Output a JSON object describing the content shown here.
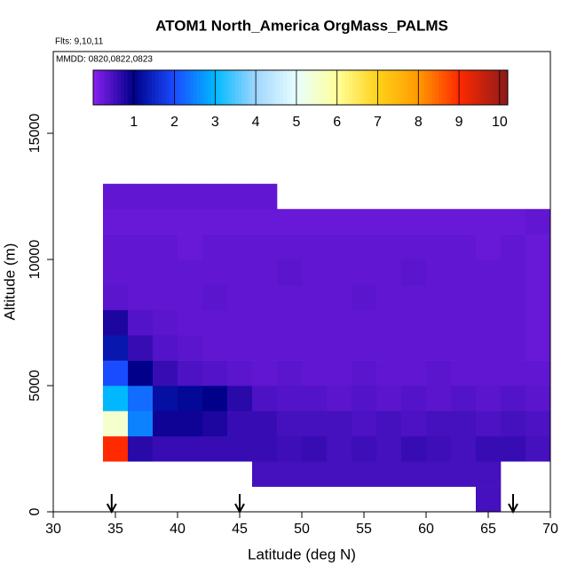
{
  "chart_data": {
    "type": "heatmap",
    "title": "ATOM1 North_America OrgMass_PALMS",
    "annotations": [
      "Flts: 9,10,11",
      "MMDD: 0820,0822,0823"
    ],
    "x_label": "Latitude (deg N)",
    "y_label": "Altitude (m)",
    "xlim": [
      30,
      70
    ],
    "xticks": [
      30,
      35,
      40,
      45,
      50,
      55,
      60,
      65,
      70
    ],
    "ylim": [
      0,
      18240
    ],
    "yticks": [
      0,
      5000,
      10000,
      15000
    ],
    "x_bins": [
      34,
      36,
      38,
      40,
      42,
      44,
      46,
      48,
      50,
      52,
      54,
      56,
      58,
      60,
      62,
      64,
      66,
      68,
      70
    ],
    "y_bins": [
      0,
      1000,
      2000,
      3000,
      4000,
      5000,
      6000,
      7000,
      8000,
      9000,
      10000,
      11000,
      12000,
      13000
    ],
    "z": [
      [
        null,
        null,
        null,
        null,
        null,
        null,
        null,
        null,
        null,
        null,
        null,
        null,
        null,
        null,
        null,
        0.5,
        null,
        null
      ],
      [
        null,
        null,
        null,
        null,
        null,
        null,
        0.5,
        0.5,
        0.5,
        0.5,
        0.5,
        0.5,
        0.5,
        0.5,
        0.5,
        0.5,
        null,
        null
      ],
      [
        9.0,
        0.7,
        0.6,
        0.6,
        0.6,
        0.6,
        0.6,
        0.55,
        0.6,
        0.5,
        0.55,
        0.5,
        0.6,
        0.55,
        0.5,
        0.6,
        0.6,
        0.5
      ],
      [
        5.5,
        2.5,
        0.9,
        0.9,
        0.8,
        0.6,
        0.6,
        0.5,
        0.5,
        0.5,
        0.45,
        0.5,
        0.45,
        0.5,
        0.5,
        0.45,
        0.5,
        0.45
      ],
      [
        3.0,
        2.3,
        1.2,
        1.1,
        1.0,
        0.7,
        0.45,
        0.4,
        0.4,
        0.35,
        0.4,
        0.35,
        0.4,
        0.35,
        0.4,
        0.35,
        0.4,
        0.35
      ],
      [
        2.0,
        1.0,
        0.6,
        0.45,
        0.4,
        0.35,
        0.3,
        0.35,
        0.3,
        0.3,
        0.35,
        0.3,
        0.3,
        0.35,
        0.3,
        0.3,
        0.3,
        0.3
      ],
      [
        1.3,
        0.6,
        0.4,
        0.35,
        0.3,
        0.3,
        0.3,
        0.3,
        0.3,
        0.3,
        0.3,
        0.3,
        0.3,
        0.3,
        0.3,
        0.3,
        0.3,
        0.25
      ],
      [
        0.8,
        0.4,
        0.35,
        0.3,
        0.3,
        0.3,
        0.3,
        0.3,
        0.3,
        0.3,
        0.3,
        0.3,
        0.3,
        0.3,
        0.3,
        0.3,
        0.3,
        0.25
      ],
      [
        0.35,
        0.3,
        0.3,
        0.3,
        0.35,
        0.3,
        0.3,
        0.3,
        0.3,
        0.3,
        0.35,
        0.3,
        0.3,
        0.3,
        0.3,
        0.3,
        0.3,
        0.25
      ],
      [
        0.3,
        0.3,
        0.3,
        0.3,
        0.3,
        0.3,
        0.3,
        0.35,
        0.3,
        0.3,
        0.3,
        0.3,
        0.35,
        0.3,
        0.3,
        0.3,
        0.3,
        0.25
      ],
      [
        0.3,
        0.3,
        0.3,
        0.25,
        0.3,
        0.3,
        0.3,
        0.3,
        0.3,
        0.3,
        0.3,
        0.3,
        0.3,
        0.3,
        0.3,
        0.25,
        0.3,
        0.25
      ],
      [
        0.25,
        0.25,
        0.25,
        0.25,
        0.25,
        0.25,
        0.25,
        0.25,
        0.25,
        0.25,
        0.25,
        0.25,
        0.25,
        0.25,
        0.25,
        0.25,
        0.25,
        0.3
      ],
      [
        0.3,
        0.3,
        0.3,
        0.3,
        0.3,
        0.3,
        0.3,
        null,
        null,
        null,
        null,
        null,
        null,
        null,
        null,
        null,
        null,
        null
      ]
    ],
    "colorbar_lim": [
      0,
      10.2
    ],
    "colorbar_ticks": [
      1,
      2,
      3,
      4,
      5,
      6,
      7,
      8,
      9,
      10
    ],
    "colormap": [
      [
        0,
        "#8a20f0"
      ],
      [
        1,
        "#00008b"
      ],
      [
        2,
        "#1a4cff"
      ],
      [
        3,
        "#00b8ff"
      ],
      [
        4,
        "#9fd6ff"
      ],
      [
        5,
        "#e8ffff"
      ],
      [
        6,
        "#ffff9a"
      ],
      [
        7,
        "#ffd21a"
      ],
      [
        8,
        "#ff9a00"
      ],
      [
        9,
        "#ff2a00"
      ],
      [
        10.2,
        "#8b1a1a"
      ]
    ],
    "arrows_lat": [
      34.7,
      45,
      67
    ]
  }
}
